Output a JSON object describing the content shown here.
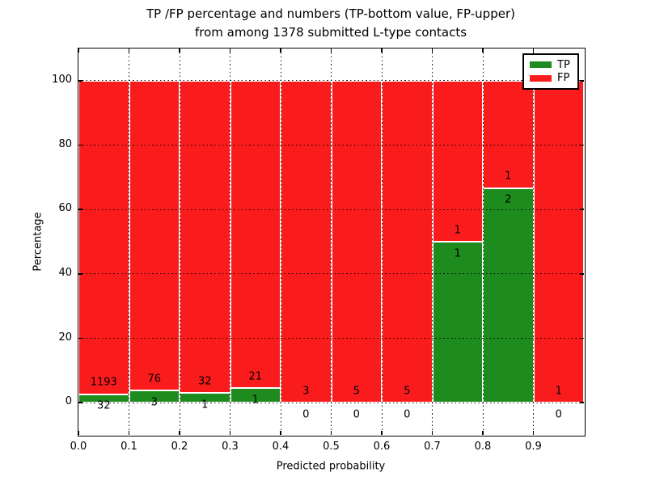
{
  "figure": {
    "title_line1": "TP /FP percentage and numbers (TP-bottom value, FP-upper)",
    "title_line2": "from among 1378 submitted L-type contacts"
  },
  "legend": {
    "items": [
      {
        "label": "TP",
        "color": "#1e8b1e"
      },
      {
        "label": "FP",
        "color": "#fa1c1c"
      }
    ]
  },
  "chart_data": {
    "type": "bar",
    "stacked": true,
    "title": "TP /FP percentage and numbers (TP-bottom value, FP-upper) from among 1378 submitted L-type contacts",
    "xlabel": "Predicted probability",
    "ylabel": "Percentage",
    "xlim": [
      0.0,
      1.0
    ],
    "ylim": [
      -10,
      110
    ],
    "grid": true,
    "legend_position": "upper right",
    "total_submitted": 1378,
    "bin_start": [
      0.0,
      0.1,
      0.2,
      0.3,
      0.4,
      0.5,
      0.6,
      0.7,
      0.8,
      0.9
    ],
    "bin_width": 0.1,
    "x_tick_labels": [
      "0.0",
      "0.1",
      "0.2",
      "0.3",
      "0.4",
      "0.5",
      "0.6",
      "0.7",
      "0.8",
      "0.9"
    ],
    "y_ticks": [
      0,
      20,
      40,
      60,
      80,
      100
    ],
    "series": [
      {
        "name": "TP",
        "color": "#1e8b1e",
        "counts": [
          32,
          3,
          1,
          1,
          0,
          0,
          0,
          1,
          2,
          0
        ]
      },
      {
        "name": "FP",
        "color": "#fa1c1c",
        "counts": [
          1193,
          76,
          32,
          21,
          3,
          5,
          5,
          1,
          1,
          1
        ]
      }
    ],
    "tp_percent_by_bin": [
      2.6,
      3.8,
      3.0,
      4.5,
      0.0,
      0.0,
      0.0,
      50.0,
      66.7,
      0.0
    ]
  }
}
